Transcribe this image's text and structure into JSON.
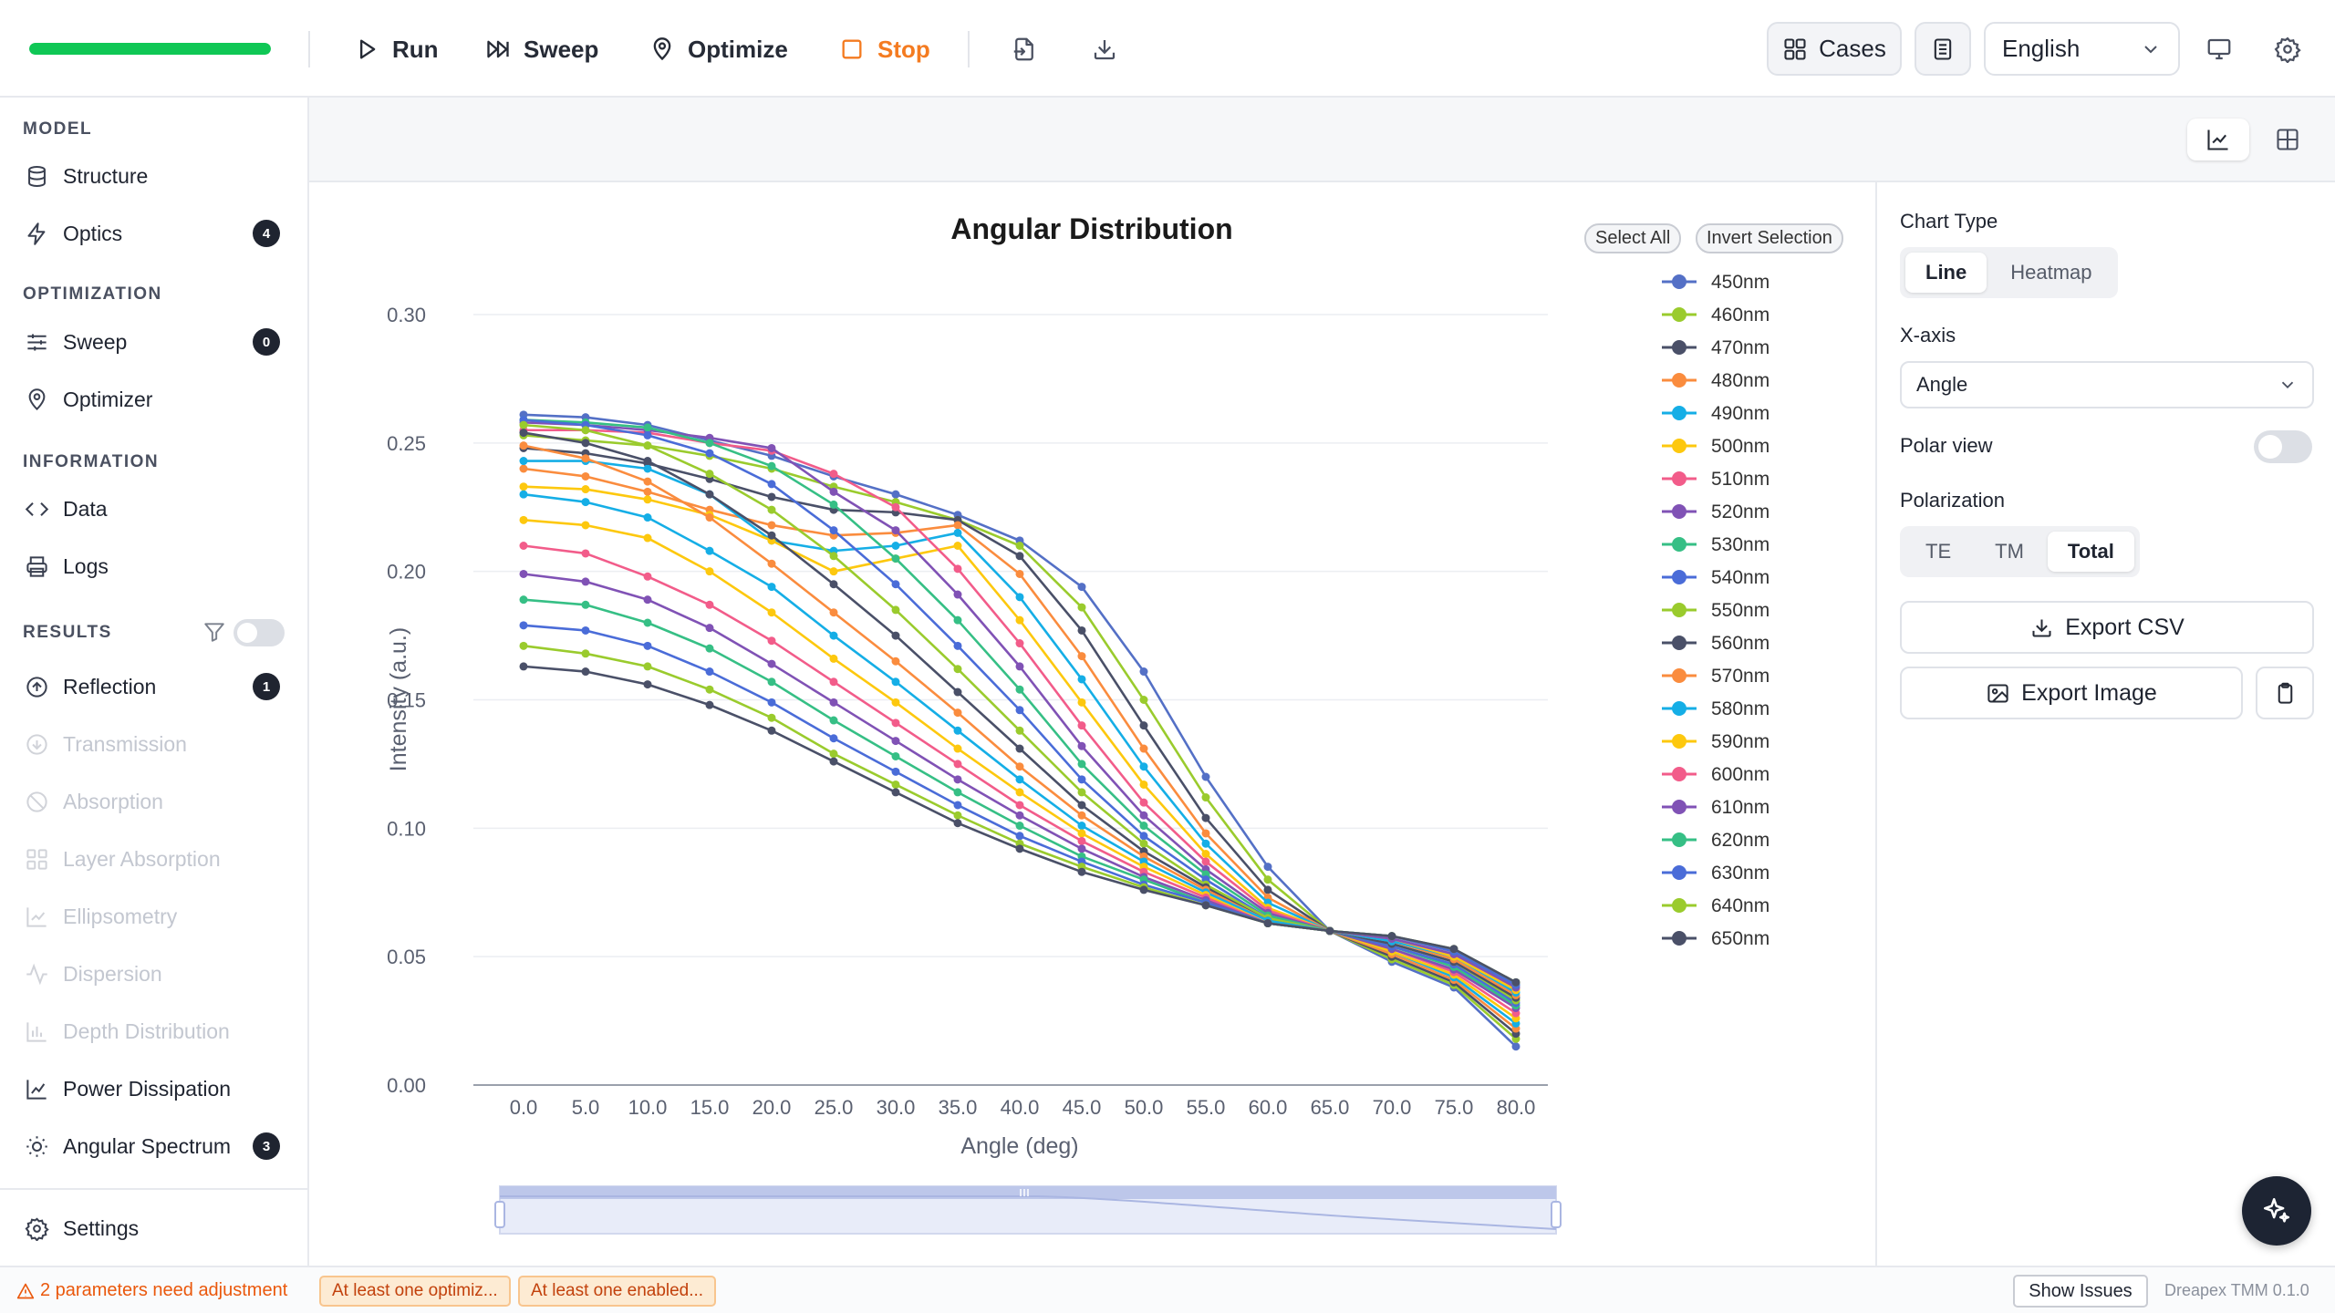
{
  "toolbar": {
    "progress": 1.0,
    "run_label": "Run",
    "sweep_label": "Sweep",
    "optimize_label": "Optimize",
    "stop_label": "Stop",
    "cases_label": "Cases",
    "language": "English",
    "icons": [
      "play-icon",
      "fast-forward-icon",
      "map-pin-icon",
      "stop-icon",
      "import-icon",
      "download-icon",
      "grid-icon",
      "document-icon",
      "chevron-down-icon",
      "monitor-icon",
      "gear-icon"
    ]
  },
  "sidebar": {
    "sections": [
      {
        "label": "MODEL",
        "items": [
          {
            "label": "Structure",
            "icon": "database-icon",
            "badge": null,
            "enabled": true
          },
          {
            "label": "Optics",
            "icon": "lightning-icon",
            "badge": "4",
            "enabled": true
          }
        ]
      },
      {
        "label": "OPTIMIZATION",
        "items": [
          {
            "label": "Sweep",
            "icon": "sliders-icon",
            "badge": "0",
            "enabled": true
          },
          {
            "label": "Optimizer",
            "icon": "map-pin-icon",
            "badge": null,
            "enabled": true
          }
        ]
      },
      {
        "label": "INFORMATION",
        "items": [
          {
            "label": "Data",
            "icon": "code-icon",
            "badge": null,
            "enabled": true
          },
          {
            "label": "Logs",
            "icon": "printer-icon",
            "badge": null,
            "enabled": true
          }
        ]
      },
      {
        "label": "RESULTS",
        "items": [
          {
            "label": "Reflection",
            "icon": "arrow-up-circle-icon",
            "badge": "1",
            "enabled": true
          },
          {
            "label": "Transmission",
            "icon": "arrow-down-circle-icon",
            "badge": null,
            "enabled": false
          },
          {
            "label": "Absorption",
            "icon": "ban-icon",
            "badge": null,
            "enabled": false
          },
          {
            "label": "Layer Absorption",
            "icon": "layers-icon",
            "badge": null,
            "enabled": false
          },
          {
            "label": "Ellipsometry",
            "icon": "line-chart-icon",
            "badge": null,
            "enabled": false
          },
          {
            "label": "Dispersion",
            "icon": "activity-icon",
            "badge": null,
            "enabled": false
          },
          {
            "label": "Depth Distribution",
            "icon": "bar-chart-icon",
            "badge": null,
            "enabled": false
          },
          {
            "label": "Power Dissipation",
            "icon": "trend-icon",
            "badge": null,
            "enabled": true
          },
          {
            "label": "Angular Spectrum",
            "icon": "sun-icon",
            "badge": "3",
            "enabled": true
          }
        ]
      }
    ],
    "settings_label": "Settings"
  },
  "legend_controls": {
    "select_all": "Select All",
    "invert_selection": "Invert Selection"
  },
  "chart_data": {
    "type": "line",
    "title": "Angular Distribution",
    "xlabel": "Angle (deg)",
    "ylabel": "Intensity (a.u.)",
    "x": [
      0,
      5,
      10,
      15,
      20,
      25,
      30,
      35,
      40,
      45,
      50,
      55,
      60,
      65,
      70,
      75,
      80
    ],
    "x_ticks": [
      "0.0",
      "5.0",
      "10.0",
      "15.0",
      "20.0",
      "25.0",
      "30.0",
      "35.0",
      "40.0",
      "45.0",
      "50.0",
      "55.0",
      "60.0",
      "65.0",
      "70.0",
      "75.0",
      "80.0"
    ],
    "y_ticks": [
      "0.00",
      "0.05",
      "0.10",
      "0.15",
      "0.20",
      "0.25",
      "0.30"
    ],
    "xlim": [
      0,
      82
    ],
    "ylim": [
      0,
      0.3
    ],
    "grid": true,
    "legend_position": "right",
    "series": [
      {
        "name": "450nm",
        "color": "#5470c6",
        "values": [
          0.261,
          0.26,
          0.257,
          0.251,
          0.245,
          0.237,
          0.23,
          0.222,
          0.212,
          0.194,
          0.161,
          0.12,
          0.085,
          0.06,
          0.048,
          0.038,
          0.015
        ]
      },
      {
        "name": "460nm",
        "color": "#9acb2d",
        "values": [
          0.253,
          0.251,
          0.249,
          0.245,
          0.24,
          0.233,
          0.227,
          0.22,
          0.21,
          0.186,
          0.15,
          0.112,
          0.08,
          0.06,
          0.049,
          0.039,
          0.018
        ]
      },
      {
        "name": "470nm",
        "color": "#4a5068",
        "values": [
          0.248,
          0.246,
          0.242,
          0.236,
          0.229,
          0.224,
          0.223,
          0.22,
          0.206,
          0.177,
          0.14,
          0.104,
          0.076,
          0.06,
          0.05,
          0.04,
          0.02
        ]
      },
      {
        "name": "480nm",
        "color": "#fa8c3e",
        "values": [
          0.24,
          0.237,
          0.231,
          0.224,
          0.218,
          0.214,
          0.215,
          0.218,
          0.199,
          0.167,
          0.131,
          0.098,
          0.073,
          0.06,
          0.051,
          0.041,
          0.022
        ]
      },
      {
        "name": "490nm",
        "color": "#15aee6",
        "values": [
          0.243,
          0.243,
          0.24,
          0.23,
          0.212,
          0.208,
          0.21,
          0.215,
          0.19,
          0.158,
          0.124,
          0.094,
          0.071,
          0.06,
          0.052,
          0.042,
          0.024
        ]
      },
      {
        "name": "500nm",
        "color": "#fdc80e",
        "values": [
          0.233,
          0.232,
          0.228,
          0.222,
          0.212,
          0.2,
          0.205,
          0.21,
          0.181,
          0.149,
          0.117,
          0.09,
          0.069,
          0.06,
          0.052,
          0.043,
          0.026
        ]
      },
      {
        "name": "510nm",
        "color": "#f25c8a",
        "values": [
          0.255,
          0.255,
          0.254,
          0.25,
          0.247,
          0.238,
          0.225,
          0.201,
          0.172,
          0.14,
          0.11,
          0.087,
          0.068,
          0.06,
          0.053,
          0.044,
          0.028
        ]
      },
      {
        "name": "520nm",
        "color": "#8052b5",
        "values": [
          0.258,
          0.257,
          0.255,
          0.252,
          0.248,
          0.231,
          0.216,
          0.191,
          0.163,
          0.132,
          0.105,
          0.084,
          0.067,
          0.06,
          0.053,
          0.045,
          0.03
        ]
      },
      {
        "name": "530nm",
        "color": "#36bf85",
        "values": [
          0.259,
          0.258,
          0.256,
          0.25,
          0.241,
          0.226,
          0.205,
          0.181,
          0.154,
          0.125,
          0.101,
          0.082,
          0.066,
          0.06,
          0.054,
          0.046,
          0.031
        ]
      },
      {
        "name": "540nm",
        "color": "#4a6cd8",
        "values": [
          0.259,
          0.257,
          0.253,
          0.246,
          0.234,
          0.216,
          0.195,
          0.171,
          0.146,
          0.119,
          0.097,
          0.08,
          0.065,
          0.06,
          0.054,
          0.047,
          0.032
        ]
      },
      {
        "name": "550nm",
        "color": "#9acb2d",
        "values": [
          0.257,
          0.255,
          0.249,
          0.238,
          0.224,
          0.206,
          0.185,
          0.162,
          0.138,
          0.114,
          0.094,
          0.078,
          0.065,
          0.06,
          0.055,
          0.048,
          0.033
        ]
      },
      {
        "name": "560nm",
        "color": "#4a5068",
        "values": [
          0.254,
          0.25,
          0.243,
          0.23,
          0.214,
          0.195,
          0.175,
          0.153,
          0.131,
          0.109,
          0.091,
          0.077,
          0.064,
          0.06,
          0.055,
          0.048,
          0.034
        ]
      },
      {
        "name": "570nm",
        "color": "#fa8c3e",
        "values": [
          0.249,
          0.244,
          0.235,
          0.221,
          0.203,
          0.184,
          0.165,
          0.145,
          0.124,
          0.105,
          0.089,
          0.076,
          0.064,
          0.06,
          0.056,
          0.049,
          0.035
        ]
      },
      {
        "name": "580nm",
        "color": "#15aee6",
        "values": [
          0.23,
          0.227,
          0.221,
          0.208,
          0.194,
          0.175,
          0.157,
          0.138,
          0.119,
          0.101,
          0.087,
          0.075,
          0.064,
          0.06,
          0.056,
          0.05,
          0.036
        ]
      },
      {
        "name": "590nm",
        "color": "#fdc80e",
        "values": [
          0.22,
          0.218,
          0.213,
          0.2,
          0.184,
          0.166,
          0.149,
          0.131,
          0.114,
          0.098,
          0.085,
          0.074,
          0.063,
          0.06,
          0.057,
          0.05,
          0.037
        ]
      },
      {
        "name": "600nm",
        "color": "#f25c8a",
        "values": [
          0.21,
          0.207,
          0.198,
          0.187,
          0.173,
          0.157,
          0.141,
          0.125,
          0.109,
          0.095,
          0.083,
          0.073,
          0.063,
          0.06,
          0.057,
          0.051,
          0.038
        ]
      },
      {
        "name": "610nm",
        "color": "#8052b5",
        "values": [
          0.199,
          0.196,
          0.189,
          0.178,
          0.164,
          0.149,
          0.134,
          0.119,
          0.105,
          0.092,
          0.081,
          0.072,
          0.063,
          0.06,
          0.057,
          0.051,
          0.038
        ]
      },
      {
        "name": "620nm",
        "color": "#36bf85",
        "values": [
          0.189,
          0.187,
          0.18,
          0.17,
          0.157,
          0.142,
          0.128,
          0.114,
          0.101,
          0.089,
          0.08,
          0.071,
          0.063,
          0.06,
          0.058,
          0.052,
          0.039
        ]
      },
      {
        "name": "630nm",
        "color": "#4a6cd8",
        "values": [
          0.179,
          0.177,
          0.171,
          0.161,
          0.149,
          0.135,
          0.122,
          0.109,
          0.097,
          0.087,
          0.078,
          0.071,
          0.063,
          0.06,
          0.058,
          0.052,
          0.039
        ]
      },
      {
        "name": "640nm",
        "color": "#9acb2d",
        "values": [
          0.171,
          0.168,
          0.163,
          0.154,
          0.143,
          0.129,
          0.117,
          0.105,
          0.094,
          0.085,
          0.077,
          0.07,
          0.063,
          0.06,
          0.058,
          0.053,
          0.04
        ]
      },
      {
        "name": "650nm",
        "color": "#4a5068",
        "values": [
          0.163,
          0.161,
          0.156,
          0.148,
          0.138,
          0.126,
          0.114,
          0.102,
          0.092,
          0.083,
          0.076,
          0.07,
          0.063,
          0.06,
          0.058,
          0.053,
          0.04
        ]
      }
    ]
  },
  "right_panel": {
    "chart_type_label": "Chart Type",
    "chart_types": [
      "Line",
      "Heatmap"
    ],
    "chart_type_selected": "Line",
    "x_axis_label": "X-axis",
    "x_axis_value": "Angle",
    "polar_label": "Polar view",
    "polar_on": false,
    "polarization_label": "Polarization",
    "polarizations": [
      "TE",
      "TM",
      "Total"
    ],
    "polarization_selected": "Total",
    "export_csv": "Export CSV",
    "export_image": "Export Image"
  },
  "status": {
    "warning": "2 parameters need adjustment",
    "chips": [
      "At least one optimiz...",
      "At least one enabled..."
    ],
    "show_issues": "Show Issues",
    "version": "Dreapex TMM 0.1.0"
  },
  "colors": {
    "accent_green": "#0fc755",
    "stop_orange": "#f47b20",
    "warning_orange": "#ea580c",
    "dark": "#1f2430"
  }
}
